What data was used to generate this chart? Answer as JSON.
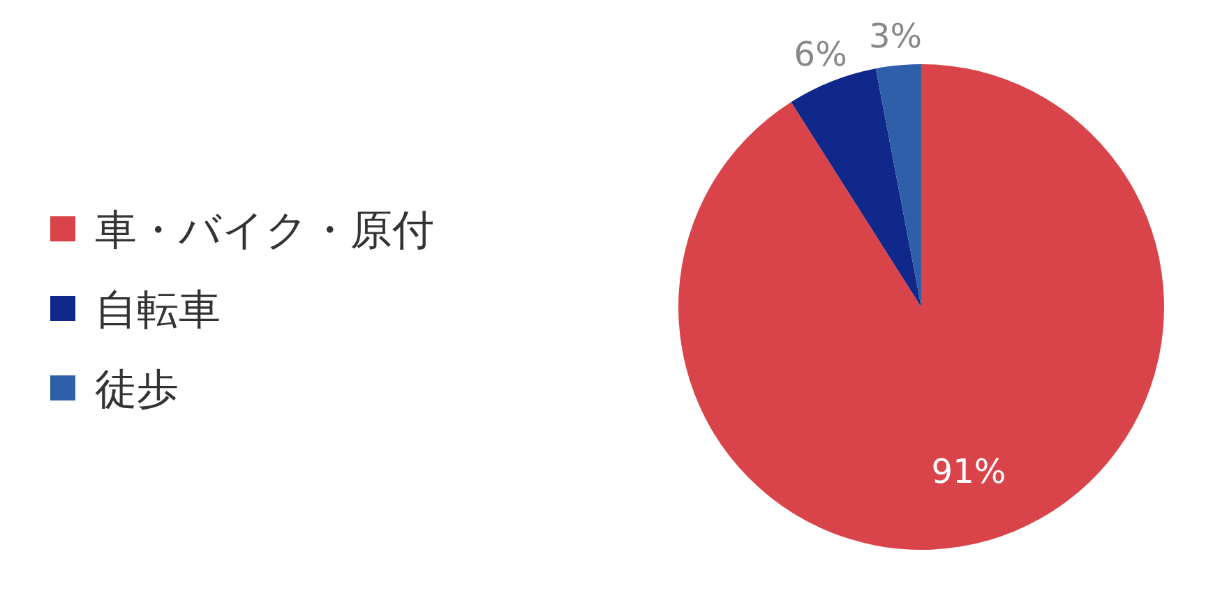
{
  "chart_data": {
    "type": "pie",
    "categories": [
      "車・バイク・原付",
      "自転車",
      "徒歩"
    ],
    "values": [
      91,
      6,
      3
    ],
    "colors": [
      "#d9444a",
      "#10288a",
      "#2f5fa8"
    ],
    "value_labels": [
      "91%",
      "6%",
      "3%"
    ],
    "legend": "left"
  }
}
